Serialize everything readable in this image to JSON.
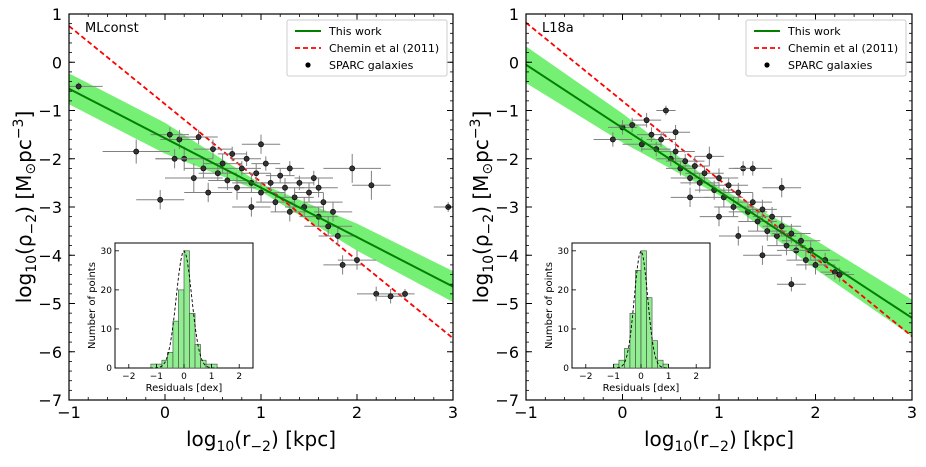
{
  "colors": {
    "fit": "#008000",
    "band": "#66ee66",
    "chemin": "#ff0000",
    "points": "#333333",
    "errbars": "#808080",
    "hist": "#90ee90"
  },
  "chart_data": [
    {
      "type": "scatter",
      "panel_label": "MLconst",
      "title": "",
      "xlabel_main": "log",
      "xlabel_sub": "10",
      "xlabel_paren": "(r",
      "xlabel_paren_sub": "−2",
      "xlabel_tail": ")  [kpc]",
      "ylabel": "log10(ρ−2)  [M⊙pc−3]",
      "ylabel_main": "log",
      "ylabel_sub": "10",
      "ylabel_rho": "(ρ",
      "ylabel_rho_sub": "−2",
      "ylabel_mid": ")  [M",
      "ylabel_sun": "⊙",
      "ylabel_pc": "pc",
      "ylabel_exp": "−3",
      "ylabel_end": "]",
      "xlim": [
        -1,
        3
      ],
      "ylim": [
        -7,
        1
      ],
      "xticks": [
        -1,
        0,
        1,
        2,
        3
      ],
      "xtick_labels": [
        "−1",
        "0",
        "1",
        "2",
        "3"
      ],
      "yticks": [
        -7,
        -6,
        -5,
        -4,
        -3,
        -2,
        -1,
        0,
        1
      ],
      "ytick_labels": [
        "−7",
        "−6",
        "−5",
        "−4",
        "−3",
        "−2",
        "−1",
        "0",
        "1"
      ],
      "legend": {
        "placement": "top-right",
        "entries": [
          "This work",
          "Chemin et al (2011)",
          "SPARC galaxies"
        ]
      },
      "series": [
        {
          "name": "This work",
          "kind": "line",
          "x": [
            -1,
            3
          ],
          "y": [
            -0.55,
            -4.65
          ],
          "band_halfwidth_dex": [
            0.32,
            0.32,
            0.08,
            0.28,
            0.32
          ]
        },
        {
          "name": "Chemin et al (2011)",
          "kind": "dashed",
          "x": [
            -1,
            3
          ],
          "y": [
            0.75,
            -5.72
          ]
        },
        {
          "name": "SPARC galaxies",
          "kind": "points",
          "points": [
            [
              -0.9,
              -0.5,
              0.25,
              0.08
            ],
            [
              -0.3,
              -1.85,
              0.35,
              0.25
            ],
            [
              -0.05,
              -2.85,
              0.25,
              0.2
            ],
            [
              0.05,
              -1.5,
              0.2,
              0.15
            ],
            [
              0.15,
              -1.6,
              0.2,
              0.2
            ],
            [
              0.2,
              -2.0,
              0.3,
              0.25
            ],
            [
              0.3,
              -2.4,
              0.3,
              0.3
            ],
            [
              0.35,
              -1.55,
              0.2,
              0.15
            ],
            [
              0.45,
              -2.7,
              0.25,
              0.2
            ],
            [
              0.5,
              -1.8,
              0.2,
              0.2
            ],
            [
              0.55,
              -2.3,
              0.2,
              0.15
            ],
            [
              0.6,
              -2.1,
              0.2,
              0.2
            ],
            [
              0.65,
              -2.45,
              0.2,
              0.2
            ],
            [
              0.7,
              -1.9,
              0.15,
              0.15
            ],
            [
              0.75,
              -2.6,
              0.2,
              0.25
            ],
            [
              0.8,
              -2.2,
              0.2,
              0.15
            ],
            [
              0.85,
              -2.0,
              0.15,
              0.15
            ],
            [
              0.9,
              -2.5,
              0.2,
              0.2
            ],
            [
              0.95,
              -2.3,
              0.15,
              0.2
            ],
            [
              1.0,
              -2.7,
              0.25,
              0.2
            ],
            [
              1.05,
              -2.1,
              0.15,
              0.15
            ],
            [
              1.1,
              -2.5,
              0.2,
              0.2
            ],
            [
              1.15,
              -2.9,
              0.2,
              0.2
            ],
            [
              1.2,
              -2.35,
              0.15,
              0.15
            ],
            [
              1.25,
              -2.6,
              0.2,
              0.2
            ],
            [
              1.3,
              -2.2,
              0.15,
              0.15
            ],
            [
              1.35,
              -2.8,
              0.2,
              0.2
            ],
            [
              1.4,
              -2.5,
              0.15,
              0.15
            ],
            [
              1.45,
              -3.0,
              0.2,
              0.2
            ],
            [
              1.5,
              -2.7,
              0.15,
              0.2
            ],
            [
              1.55,
              -2.4,
              0.2,
              0.15
            ],
            [
              1.6,
              -3.2,
              0.2,
              0.2
            ],
            [
              1.65,
              -2.9,
              0.2,
              0.2
            ],
            [
              1.7,
              -3.4,
              0.25,
              0.2
            ],
            [
              1.75,
              -3.1,
              0.2,
              0.2
            ],
            [
              1.8,
              -3.6,
              0.2,
              0.2
            ],
            [
              1.85,
              -4.2,
              0.2,
              0.2
            ],
            [
              1.95,
              -2.2,
              0.3,
              0.3
            ],
            [
              2.15,
              -2.55,
              0.2,
              0.3
            ],
            [
              2.0,
              -4.1,
              0.2,
              0.2
            ],
            [
              2.2,
              -4.8,
              0.2,
              0.15
            ],
            [
              2.35,
              -4.85,
              0.15,
              0.15
            ],
            [
              2.5,
              -4.8,
              0.1,
              0.1
            ],
            [
              2.95,
              -3.0,
              0.15,
              0.1
            ],
            [
              0.4,
              -2.2,
              0.2,
              0.2
            ],
            [
              0.1,
              -2.0,
              0.2,
              0.2
            ],
            [
              1.0,
              -1.7,
              0.2,
              0.2
            ],
            [
              1.3,
              -3.1,
              0.2,
              0.2
            ],
            [
              1.6,
              -2.6,
              0.2,
              0.2
            ],
            [
              0.9,
              -3.0,
              0.2,
              0.2
            ]
          ]
        }
      ],
      "inset": {
        "type": "bar",
        "xlabel": "Residuals [dex]",
        "ylabel": "Number of points",
        "xlim": [
          -2.5,
          2.5
        ],
        "ylim": [
          0,
          32
        ],
        "xticks": [
          -2,
          -1,
          0,
          1,
          2
        ],
        "xtick_labels": [
          "−2",
          "−1",
          "0",
          "1",
          "2"
        ],
        "yticks": [
          0,
          10,
          20,
          30
        ],
        "ytick_labels": [
          "0",
          "10",
          "20",
          "30"
        ],
        "bin_edges": [
          -1.2,
          -1.0,
          -0.8,
          -0.6,
          -0.4,
          -0.2,
          0.0,
          0.2,
          0.4,
          0.6,
          0.8,
          1.0,
          1.2
        ],
        "counts": [
          1,
          1,
          2,
          4,
          12,
          20,
          30,
          14,
          6,
          2,
          1,
          1
        ],
        "gaussian": {
          "mean": 0.0,
          "sigma": 0.28,
          "peak": 30
        }
      }
    },
    {
      "type": "scatter",
      "panel_label": "L18a",
      "title": "",
      "xlabel_main": "log",
      "xlabel_sub": "10",
      "xlabel_paren": "(r",
      "xlabel_paren_sub": "−2",
      "xlabel_tail": ")  [kpc]",
      "ylabel": "log10(ρ−2)  [M⊙pc−3]",
      "ylabel_main": "log",
      "ylabel_sub": "10",
      "ylabel_rho": "(ρ",
      "ylabel_rho_sub": "−2",
      "ylabel_mid": ")  [M",
      "ylabel_sun": "⊙",
      "ylabel_pc": "pc",
      "ylabel_exp": "−3",
      "ylabel_end": "]",
      "xlim": [
        -1,
        3
      ],
      "ylim": [
        -7,
        1
      ],
      "xticks": [
        -1,
        0,
        1,
        2,
        3
      ],
      "xtick_labels": [
        "−1",
        "0",
        "1",
        "2",
        "3"
      ],
      "yticks": [
        -7,
        -6,
        -5,
        -4,
        -3,
        -2,
        -1,
        0,
        1
      ],
      "ytick_labels": [
        "−7",
        "−6",
        "−5",
        "−4",
        "−3",
        "−2",
        "−1",
        "0",
        "1"
      ],
      "legend": {
        "placement": "top-right",
        "entries": [
          "This work",
          "Chemin et al (2011)",
          "SPARC galaxies"
        ]
      },
      "series": [
        {
          "name": "This work",
          "kind": "line",
          "x": [
            -1,
            3
          ],
          "y": [
            -0.05,
            -5.3
          ],
          "band_halfwidth_dex": [
            0.38,
            0.3,
            0.08,
            0.3,
            0.38
          ]
        },
        {
          "name": "Chemin et al (2011)",
          "kind": "dashed",
          "x": [
            -1,
            3
          ],
          "y": [
            0.82,
            -5.68
          ]
        },
        {
          "name": "SPARC galaxies",
          "kind": "points",
          "points": [
            [
              -0.1,
              -1.6,
              0.2,
              0.15
            ],
            [
              0.0,
              -1.35,
              0.15,
              0.15
            ],
            [
              0.1,
              -1.3,
              0.15,
              0.15
            ],
            [
              0.2,
              -1.7,
              0.2,
              0.15
            ],
            [
              0.3,
              -1.5,
              0.15,
              0.15
            ],
            [
              0.35,
              -1.8,
              0.15,
              0.15
            ],
            [
              0.4,
              -1.6,
              0.15,
              0.15
            ],
            [
              0.45,
              -1.0,
              0.1,
              0.1
            ],
            [
              0.5,
              -2.0,
              0.15,
              0.15
            ],
            [
              0.55,
              -1.85,
              0.2,
              0.2
            ],
            [
              0.6,
              -2.2,
              0.15,
              0.15
            ],
            [
              0.65,
              -2.05,
              0.2,
              0.15
            ],
            [
              0.7,
              -2.4,
              0.2,
              0.15
            ],
            [
              0.75,
              -2.15,
              0.15,
              0.2
            ],
            [
              0.8,
              -2.5,
              0.2,
              0.2
            ],
            [
              0.85,
              -2.3,
              0.2,
              0.15
            ],
            [
              0.9,
              -1.95,
              0.15,
              0.2
            ],
            [
              0.95,
              -2.65,
              0.2,
              0.2
            ],
            [
              1.0,
              -2.4,
              0.2,
              0.2
            ],
            [
              1.05,
              -2.8,
              0.2,
              0.2
            ],
            [
              1.1,
              -2.55,
              0.2,
              0.15
            ],
            [
              1.15,
              -3.0,
              0.2,
              0.2
            ],
            [
              1.2,
              -2.7,
              0.15,
              0.2
            ],
            [
              1.25,
              -2.2,
              0.15,
              0.15
            ],
            [
              1.3,
              -3.1,
              0.2,
              0.2
            ],
            [
              1.35,
              -2.9,
              0.2,
              0.2
            ],
            [
              1.4,
              -3.3,
              0.2,
              0.2
            ],
            [
              1.45,
              -3.05,
              0.15,
              0.2
            ],
            [
              1.5,
              -3.5,
              0.2,
              0.2
            ],
            [
              1.55,
              -3.2,
              0.2,
              0.2
            ],
            [
              1.6,
              -3.6,
              0.2,
              0.2
            ],
            [
              1.65,
              -3.4,
              0.2,
              0.2
            ],
            [
              1.7,
              -3.8,
              0.2,
              0.2
            ],
            [
              1.75,
              -3.55,
              0.2,
              0.2
            ],
            [
              1.8,
              -3.9,
              0.2,
              0.2
            ],
            [
              1.85,
              -3.7,
              0.2,
              0.15
            ],
            [
              1.9,
              -4.1,
              0.2,
              0.2
            ],
            [
              1.95,
              -3.9,
              0.2,
              0.2
            ],
            [
              2.0,
              -4.2,
              0.2,
              0.2
            ],
            [
              2.1,
              -4.1,
              0.15,
              0.15
            ],
            [
              2.2,
              -4.35,
              0.15,
              0.15
            ],
            [
              2.25,
              -4.4,
              0.15,
              0.15
            ],
            [
              1.75,
              -4.6,
              0.15,
              0.15
            ],
            [
              1.45,
              -4.0,
              0.2,
              0.2
            ],
            [
              1.2,
              -3.6,
              0.2,
              0.2
            ],
            [
              1.0,
              -3.2,
              0.2,
              0.2
            ],
            [
              0.7,
              -2.8,
              0.2,
              0.2
            ],
            [
              0.55,
              -1.45,
              0.15,
              0.15
            ],
            [
              1.65,
              -2.6,
              0.2,
              0.2
            ],
            [
              0.25,
              -1.2,
              0.15,
              0.15
            ],
            [
              1.35,
              -2.2,
              0.2,
              0.15
            ]
          ]
        }
      ],
      "inset": {
        "type": "bar",
        "xlabel": "Residuals [dex]",
        "ylabel": "Number of points",
        "xlim": [
          -2.5,
          2.5
        ],
        "ylim": [
          0,
          32
        ],
        "xticks": [
          -2,
          -1,
          0,
          1,
          2
        ],
        "xtick_labels": [
          "−2",
          "−1",
          "0",
          "1",
          "2"
        ],
        "yticks": [
          0,
          10,
          20,
          30
        ],
        "ytick_labels": [
          "0",
          "10",
          "20",
          "30"
        ],
        "bin_edges": [
          -1.0,
          -0.8,
          -0.6,
          -0.4,
          -0.2,
          0.0,
          0.2,
          0.4,
          0.6,
          0.8,
          1.0
        ],
        "counts": [
          1,
          2,
          5,
          14,
          25,
          30,
          18,
          7,
          2,
          1
        ],
        "gaussian": {
          "mean": 0.0,
          "sigma": 0.24,
          "peak": 30
        }
      }
    }
  ]
}
